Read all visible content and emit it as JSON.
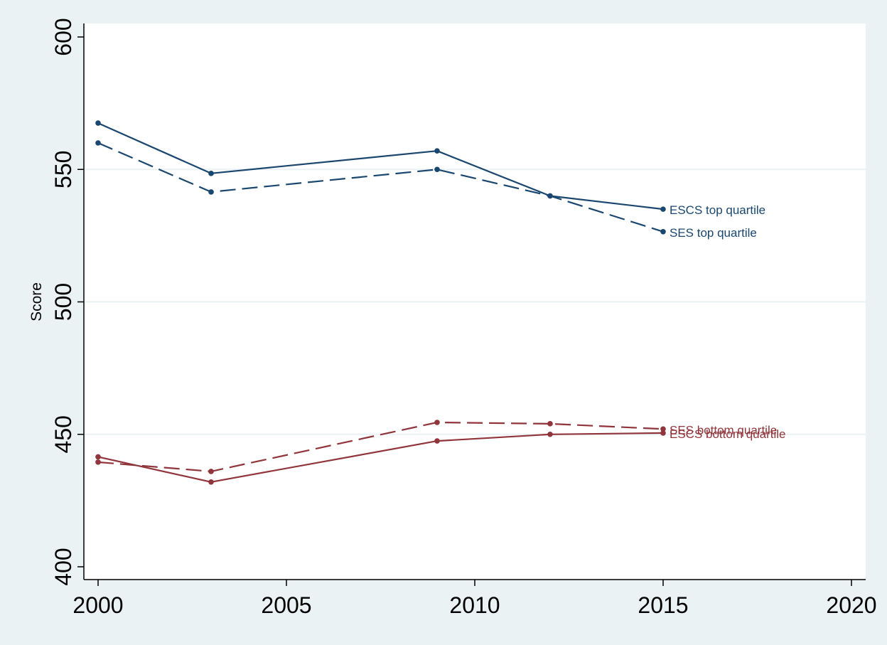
{
  "chart_data": {
    "type": "line",
    "title": "",
    "xlabel": "",
    "ylabel": "Score",
    "xlim": [
      2000,
      2020
    ],
    "ylim": [
      400,
      600
    ],
    "xticks": [
      2000,
      2005,
      2010,
      2015,
      2020
    ],
    "yticks": [
      400,
      450,
      500,
      550,
      600
    ],
    "gridlines_y": [
      450,
      500,
      550
    ],
    "legend": "none",
    "series": [
      {
        "name": "ESCS top quartile",
        "color": "#1a476f",
        "dash": "solid",
        "x": [
          2000,
          2003,
          2009,
          2012,
          2015
        ],
        "values": [
          567.5,
          548.5,
          557,
          540,
          535
        ]
      },
      {
        "name": "SES top quartile",
        "color": "#1a476f",
        "dash": "dashed",
        "x": [
          2000,
          2003,
          2009,
          2012,
          2015
        ],
        "values": [
          560,
          541.5,
          550,
          540,
          526.5
        ]
      },
      {
        "name": "SES bottom quartile",
        "color": "#90353b",
        "dash": "dashed",
        "x": [
          2000,
          2003,
          2009,
          2012,
          2015
        ],
        "values": [
          439.5,
          436,
          454.5,
          454,
          452
        ]
      },
      {
        "name": "ESCS bottom quartile",
        "color": "#90353b",
        "dash": "solid",
        "x": [
          2000,
          2003,
          2009,
          2012,
          2015
        ],
        "values": [
          441.5,
          432,
          447.5,
          450,
          450.5
        ]
      }
    ]
  }
}
